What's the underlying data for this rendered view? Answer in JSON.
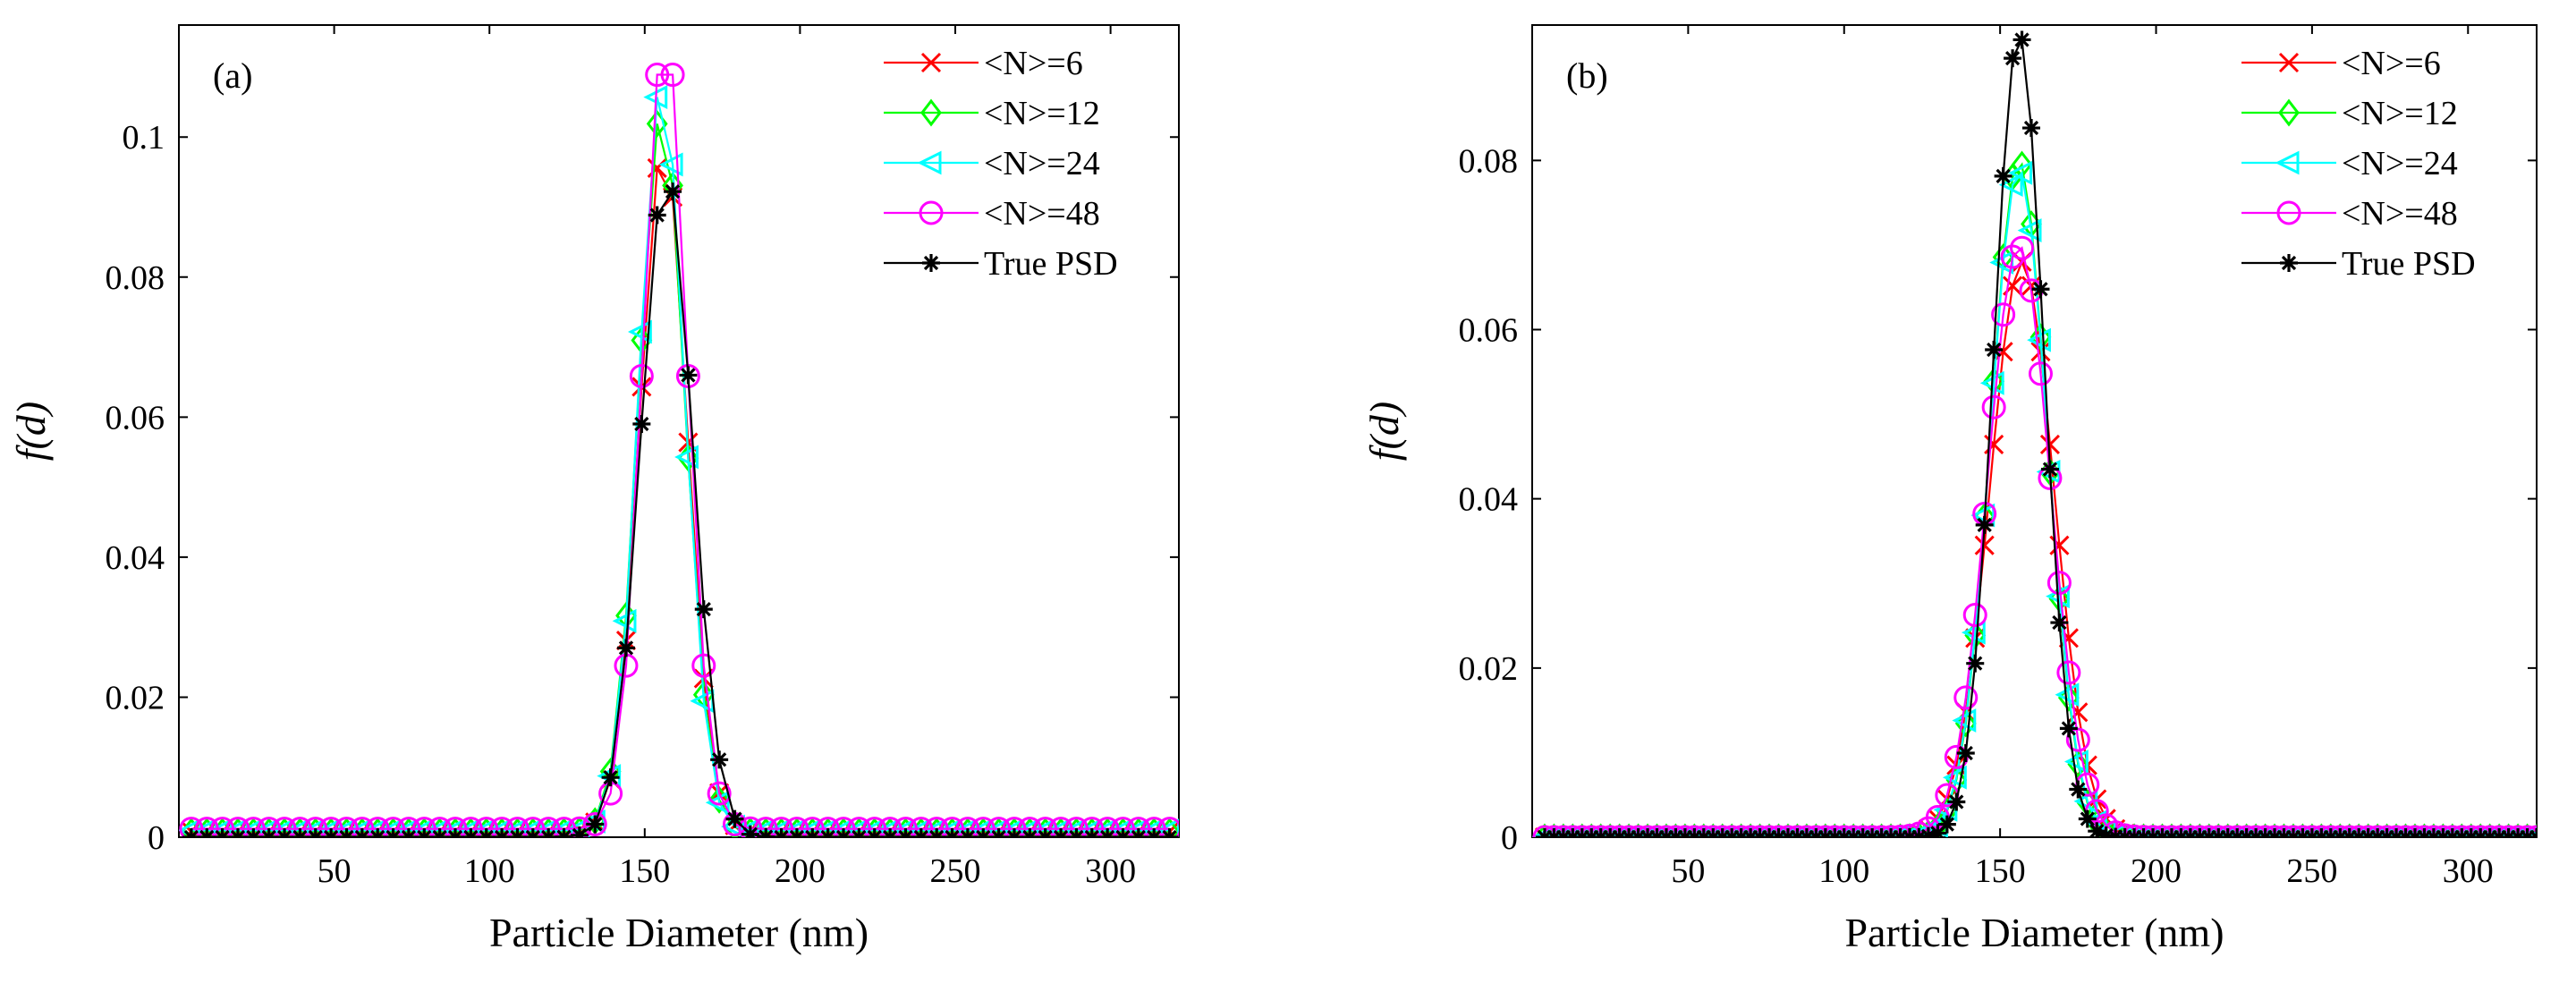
{
  "figure": {
    "background": "#ffffff"
  },
  "chart_data": [
    {
      "type": "line",
      "panel_label": "(a)",
      "xlabel": "Particle Diameter (nm)",
      "ylabel": "f(d)",
      "xlim": [
        0,
        322
      ],
      "ylim": [
        0,
        0.116
      ],
      "xticks": [
        50,
        100,
        150,
        200,
        250,
        300
      ],
      "yticks": [
        0,
        0.02,
        0.04,
        0.06,
        0.08,
        0.1
      ],
      "ytick_labels": [
        "0",
        "0.02",
        "0.04",
        "0.06",
        "0.08",
        "0.1"
      ],
      "x_start": 4,
      "x_step": 5,
      "legend_position": "top-right",
      "series": [
        {
          "name": "<N>=6",
          "color": "#ff0000",
          "marker": "x",
          "center": 156,
          "sigma": 7.5,
          "peak": 0.099,
          "baseline": 0.0008
        },
        {
          "name": "<N>=12",
          "color": "#00ff00",
          "marker": "diamond",
          "center": 155.5,
          "sigma": 7.4,
          "peak": 0.104,
          "baseline": 0.0008
        },
        {
          "name": "<N>=24",
          "color": "#00ffff",
          "marker": "triangle-left",
          "center": 155.5,
          "sigma": 7.2,
          "peak": 0.108,
          "baseline": 0.001
        },
        {
          "name": "<N>=48",
          "color": "#ff00ff",
          "marker": "circle",
          "center": 156.5,
          "sigma": 7.0,
          "peak": 0.116,
          "baseline": 0.0012
        },
        {
          "name": "True PSD",
          "color": "#000000",
          "marker": "star",
          "center": 157,
          "sigma": 8.2,
          "peak": 0.095,
          "baseline": 0.0
        }
      ]
    },
    {
      "type": "line",
      "panel_label": "(b)",
      "xlabel": "Particle Diameter (nm)",
      "ylabel": "f(d)",
      "xlim": [
        0,
        322
      ],
      "ylim": [
        0,
        0.096
      ],
      "xticks": [
        50,
        100,
        150,
        200,
        250,
        300
      ],
      "yticks": [
        0,
        0.02,
        0.04,
        0.06,
        0.08
      ],
      "ytick_labels": [
        "0",
        "0.02",
        "0.04",
        "0.06",
        "0.08"
      ],
      "x_start": 4,
      "x_step": 3,
      "legend_position": "top-right",
      "series": [
        {
          "name": "<N>=6",
          "color": "#ff0000",
          "marker": "x",
          "center": 157,
          "sigma": 10.3,
          "peak": 0.068,
          "baseline": 0.0
        },
        {
          "name": "<N>=12",
          "color": "#00ff00",
          "marker": "diamond",
          "center": 156,
          "sigma": 9.0,
          "peak": 0.08,
          "baseline": 0.0
        },
        {
          "name": "<N>=24",
          "color": "#00ffff",
          "marker": "triangle-left",
          "center": 156,
          "sigma": 9.1,
          "peak": 0.079,
          "baseline": 0.0
        },
        {
          "name": "<N>=48",
          "color": "#ff00ff",
          "marker": "circle",
          "center": 156,
          "sigma": 10.0,
          "peak": 0.07,
          "baseline": 0.0
        },
        {
          "name": "True PSD",
          "color": "#000000",
          "marker": "star",
          "center": 156,
          "sigma": 8.0,
          "peak": 0.095,
          "baseline": 0.0
        }
      ]
    }
  ]
}
